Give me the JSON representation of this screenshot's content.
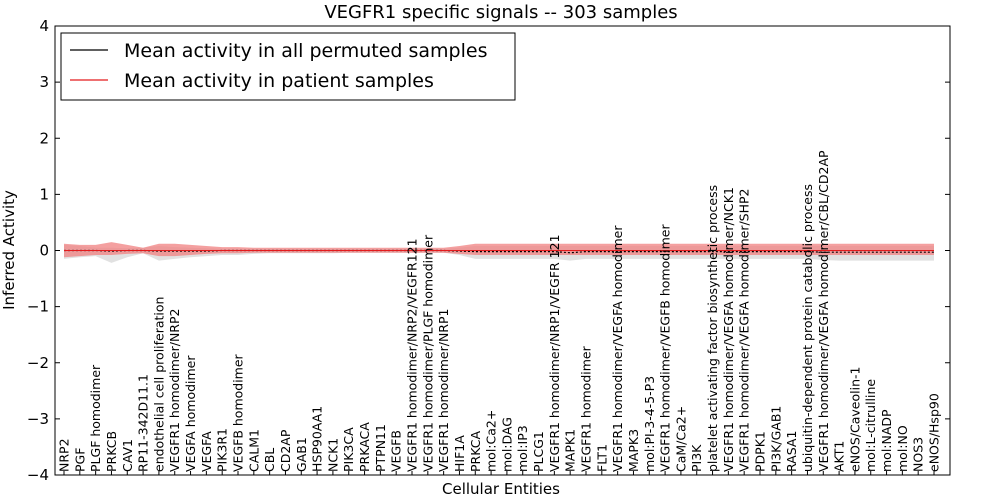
{
  "chart_data": {
    "type": "line",
    "title": "VEGFR1 specific signals -- 303 samples",
    "xlabel": "Cellular Entities",
    "ylabel": "Inferred Activity",
    "ylim": [
      -4,
      4
    ],
    "yticks": [
      -4,
      -3,
      -2,
      -1,
      0,
      1,
      2,
      3,
      4
    ],
    "grid": false,
    "legend_position": "top-left",
    "categories": [
      "NRP2",
      "PGF",
      "PLGF homodimer",
      "PRKCB",
      "CAV1",
      "RP11-342D11.1",
      "endothelial cell proliferation",
      "VEGFR1 homodimer/NRP2",
      "VEGFA homodimer",
      "VEGFA",
      "PIK3R1",
      "VEGFB homodimer",
      "CALM1",
      "CBL",
      "CD2AP",
      "GAB1",
      "HSP90AA1",
      "NCK1",
      "PIK3CA",
      "PRKACA",
      "PTPN11",
      "VEGFB",
      "VEGFR1 homodimer/NRP2/VEGFR121",
      "VEGFR1 homodimer/PLGF homodimer",
      "VEGFR1 homodimer/NRP1",
      "HIF1A",
      "PRKCA",
      "mol:Ca2+",
      "mol:DAG",
      "mol:IP3",
      "PLCG1",
      "VEGFR1 homodimer/NRP1/VEGFR 121",
      "MAPK1",
      "VEGFR1 homodimer",
      "FLT1",
      "VEGFR1 homodimer/VEGFA homodimer",
      "MAPK3",
      "mol:PI-3-4-5-P3",
      "VEGFR1 homodimer/VEGFB homodimer",
      "CaM/Ca2+",
      "PI3K",
      "platelet activating factor biosynthetic process",
      "VEGFR1 homodimer/VEGFA homodimer/NCK1",
      "VEGFR1 homodimer/VEGFA homodimer/SHP2",
      "PDPK1",
      "PI3K/GAB1",
      "RASA1",
      "ubiquitin-dependent protein catabolic process",
      "VEGFR1 homodimer/VEGFA homodimer/CBL/CD2AP",
      "AKT1",
      "eNOS/Caveolin-1",
      "mol:L-citrulline",
      "mol:NADP",
      "mol:NO",
      "NOS3",
      "eNOS/Hsp90"
    ],
    "series": [
      {
        "name": "Mean activity in all permuted samples",
        "color": "#000000",
        "values": [
          0.0,
          0.0,
          0.0,
          -0.01,
          0.0,
          0.0,
          -0.01,
          -0.01,
          -0.01,
          -0.01,
          0.0,
          0.0,
          0.0,
          0.0,
          0.0,
          0.0,
          0.0,
          0.0,
          0.0,
          0.0,
          0.0,
          0.0,
          0.0,
          0.0,
          0.0,
          -0.01,
          -0.02,
          -0.02,
          -0.02,
          -0.02,
          -0.02,
          -0.02,
          -0.04,
          -0.02,
          -0.02,
          -0.02,
          -0.02,
          -0.02,
          -0.02,
          -0.02,
          -0.02,
          -0.02,
          -0.02,
          -0.02,
          -0.02,
          -0.02,
          -0.02,
          -0.02,
          -0.03,
          -0.03,
          -0.03,
          -0.03,
          -0.03,
          -0.03,
          -0.03,
          -0.03
        ],
        "lower": [
          -0.15,
          -0.12,
          -0.1,
          -0.22,
          -0.12,
          -0.05,
          -0.18,
          -0.15,
          -0.12,
          -0.1,
          -0.08,
          -0.08,
          -0.06,
          -0.05,
          -0.05,
          -0.05,
          -0.05,
          -0.05,
          -0.04,
          -0.04,
          -0.04,
          -0.04,
          -0.04,
          -0.04,
          -0.04,
          -0.08,
          -0.15,
          -0.15,
          -0.15,
          -0.15,
          -0.15,
          -0.15,
          -0.18,
          -0.15,
          -0.15,
          -0.15,
          -0.15,
          -0.15,
          -0.15,
          -0.15,
          -0.15,
          -0.15,
          -0.15,
          -0.15,
          -0.15,
          -0.15,
          -0.15,
          -0.15,
          -0.17,
          -0.18,
          -0.18,
          -0.18,
          -0.18,
          -0.18,
          -0.18,
          -0.18
        ],
        "upper": [
          0.1,
          0.08,
          0.05,
          0.05,
          0.04,
          0.05,
          0.08,
          0.06,
          0.05,
          0.04,
          0.03,
          0.03,
          0.03,
          0.03,
          0.03,
          0.03,
          0.03,
          0.03,
          0.03,
          0.03,
          0.03,
          0.03,
          0.03,
          0.03,
          0.03,
          0.05,
          0.08,
          0.08,
          0.08,
          0.08,
          0.08,
          0.08,
          0.08,
          0.08,
          0.08,
          0.08,
          0.08,
          0.08,
          0.08,
          0.08,
          0.08,
          0.08,
          0.08,
          0.08,
          0.08,
          0.08,
          0.08,
          0.08,
          0.08,
          0.08,
          0.08,
          0.08,
          0.08,
          0.08,
          0.08,
          0.08
        ],
        "band_color": "#c8c8c8"
      },
      {
        "name": "Mean activity in patient samples",
        "color": "#e41a1c",
        "values": [
          0.0,
          0.0,
          0.0,
          0.0,
          0.0,
          0.0,
          0.0,
          0.0,
          0.0,
          0.0,
          0.0,
          0.0,
          0.0,
          0.0,
          0.0,
          0.0,
          0.0,
          0.0,
          0.0,
          0.0,
          0.0,
          0.0,
          0.0,
          0.0,
          0.0,
          0.0,
          0.0,
          0.0,
          0.0,
          0.0,
          0.0,
          0.0,
          0.0,
          0.0,
          0.0,
          0.0,
          0.0,
          0.0,
          0.0,
          0.0,
          0.0,
          0.0,
          0.0,
          0.0,
          0.0,
          0.0,
          0.0,
          0.0,
          0.0,
          0.0,
          0.0,
          0.0,
          0.0,
          0.0,
          0.0,
          0.0
        ],
        "lower": [
          -0.12,
          -0.1,
          -0.08,
          -0.08,
          -0.06,
          -0.05,
          -0.1,
          -0.1,
          -0.08,
          -0.06,
          -0.05,
          -0.05,
          -0.04,
          -0.04,
          -0.04,
          -0.04,
          -0.04,
          -0.04,
          -0.04,
          -0.04,
          -0.04,
          -0.04,
          -0.04,
          -0.04,
          -0.04,
          -0.06,
          -0.08,
          -0.08,
          -0.08,
          -0.08,
          -0.08,
          -0.08,
          -0.08,
          -0.08,
          -0.08,
          -0.08,
          -0.08,
          -0.08,
          -0.08,
          -0.08,
          -0.08,
          -0.08,
          -0.08,
          -0.08,
          -0.08,
          -0.08,
          -0.08,
          -0.08,
          -0.08,
          -0.08,
          -0.08,
          -0.08,
          -0.08,
          -0.08,
          -0.08,
          -0.08
        ],
        "upper": [
          0.12,
          0.1,
          0.1,
          0.15,
          0.1,
          0.05,
          0.12,
          0.12,
          0.1,
          0.08,
          0.06,
          0.06,
          0.05,
          0.05,
          0.05,
          0.05,
          0.05,
          0.05,
          0.05,
          0.05,
          0.05,
          0.05,
          0.05,
          0.05,
          0.05,
          0.08,
          0.12,
          0.12,
          0.12,
          0.12,
          0.12,
          0.12,
          0.12,
          0.12,
          0.12,
          0.12,
          0.12,
          0.12,
          0.12,
          0.12,
          0.12,
          0.12,
          0.12,
          0.12,
          0.12,
          0.12,
          0.12,
          0.12,
          0.12,
          0.12,
          0.12,
          0.12,
          0.12,
          0.12,
          0.12,
          0.12
        ],
        "band_color": "#f08080"
      }
    ]
  }
}
